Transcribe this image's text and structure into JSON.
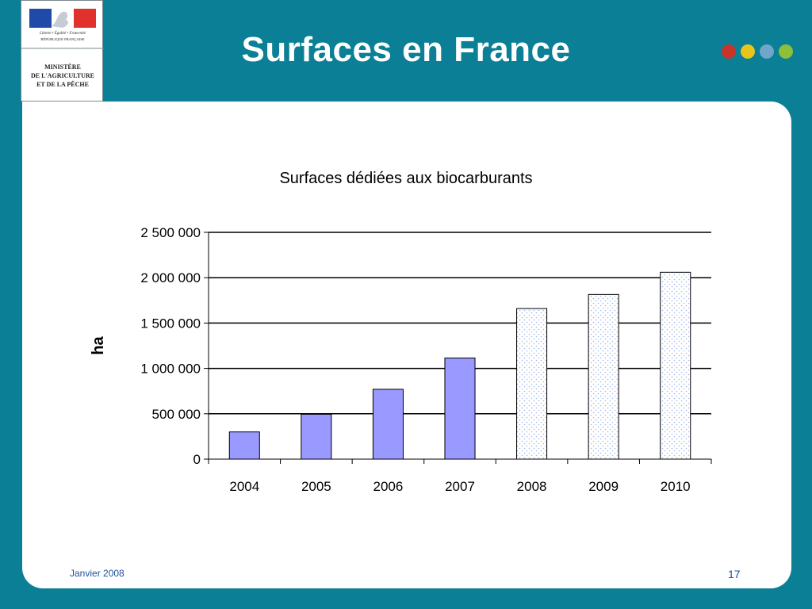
{
  "slide": {
    "title": "Surfaces en France",
    "footer_date": "Janvier 2008",
    "page_number": "17",
    "accent_dots": [
      "#c8342b",
      "#e8c51b",
      "#6fa6c9",
      "#8ebf3a"
    ],
    "background": "#0a7f96"
  },
  "logo": {
    "motto": "Liberté • Égalité • Fraternité",
    "republic": "RÉPUBLIQUE FRANÇAISE",
    "ministry_lines": [
      "MINISTÈRE",
      "DE L'AGRICULTURE",
      "ET DE LA PÊCHE"
    ]
  },
  "chart_data": {
    "type": "bar",
    "title": "Surfaces dédiées aux biocarburants",
    "ylabel": "ha",
    "xlabel": "",
    "categories": [
      "2004",
      "2005",
      "2006",
      "2007",
      "2008",
      "2009",
      "2010"
    ],
    "values": [
      300000,
      495000,
      770000,
      1115000,
      1660000,
      1815000,
      2060000
    ],
    "ylim": [
      0,
      2500000
    ],
    "yticks": [
      0,
      500000,
      1000000,
      1500000,
      2000000,
      2500000
    ],
    "ytick_labels": [
      "0",
      "500 000",
      "1 000 000",
      "1 500 000",
      "2 000 000",
      "2 500 000"
    ],
    "bar_styles": [
      "solid",
      "solid",
      "solid",
      "solid",
      "dotted",
      "dotted",
      "dotted"
    ],
    "colors": {
      "solid": "#9999ff",
      "dotted_fill": "#ffffff",
      "dotted_pattern": "#9fb6ea"
    },
    "grid": true
  }
}
